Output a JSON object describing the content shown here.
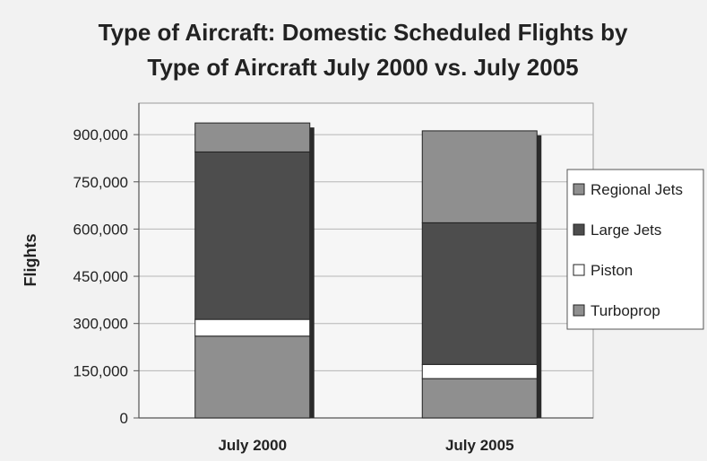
{
  "chart_data": {
    "type": "bar",
    "stacked": true,
    "title_lines": [
      "Type of Aircraft: Domestic Scheduled Flights by",
      "Type of Aircraft July 2000 vs. July 2005"
    ],
    "ylabel": "Flights",
    "xlabel": "",
    "categories": [
      "July 2000",
      "July 2005"
    ],
    "y_ticks": [
      0,
      150000,
      300000,
      450000,
      600000,
      750000,
      900000
    ],
    "y_tick_labels": [
      "0",
      "150,000",
      "300,000",
      "450,000",
      "600,000",
      "750,000",
      "900,000"
    ],
    "ylim": [
      0,
      1000000
    ],
    "grid": true,
    "legend_position": "right",
    "series": [
      {
        "name": "Turboprop",
        "values": [
          260000,
          125000
        ],
        "color": "#8f8f8f"
      },
      {
        "name": "Piston",
        "values": [
          53000,
          45000
        ],
        "color": "#ffffff"
      },
      {
        "name": "Large Jets",
        "values": [
          532000,
          450000
        ],
        "color": "#4d4d4d"
      },
      {
        "name": "Regional Jets",
        "values": [
          92000,
          292000
        ],
        "color": "#8f8f8f"
      }
    ],
    "legend_order": [
      "Regional Jets",
      "Large Jets",
      "Piston",
      "Turboprop"
    ]
  }
}
